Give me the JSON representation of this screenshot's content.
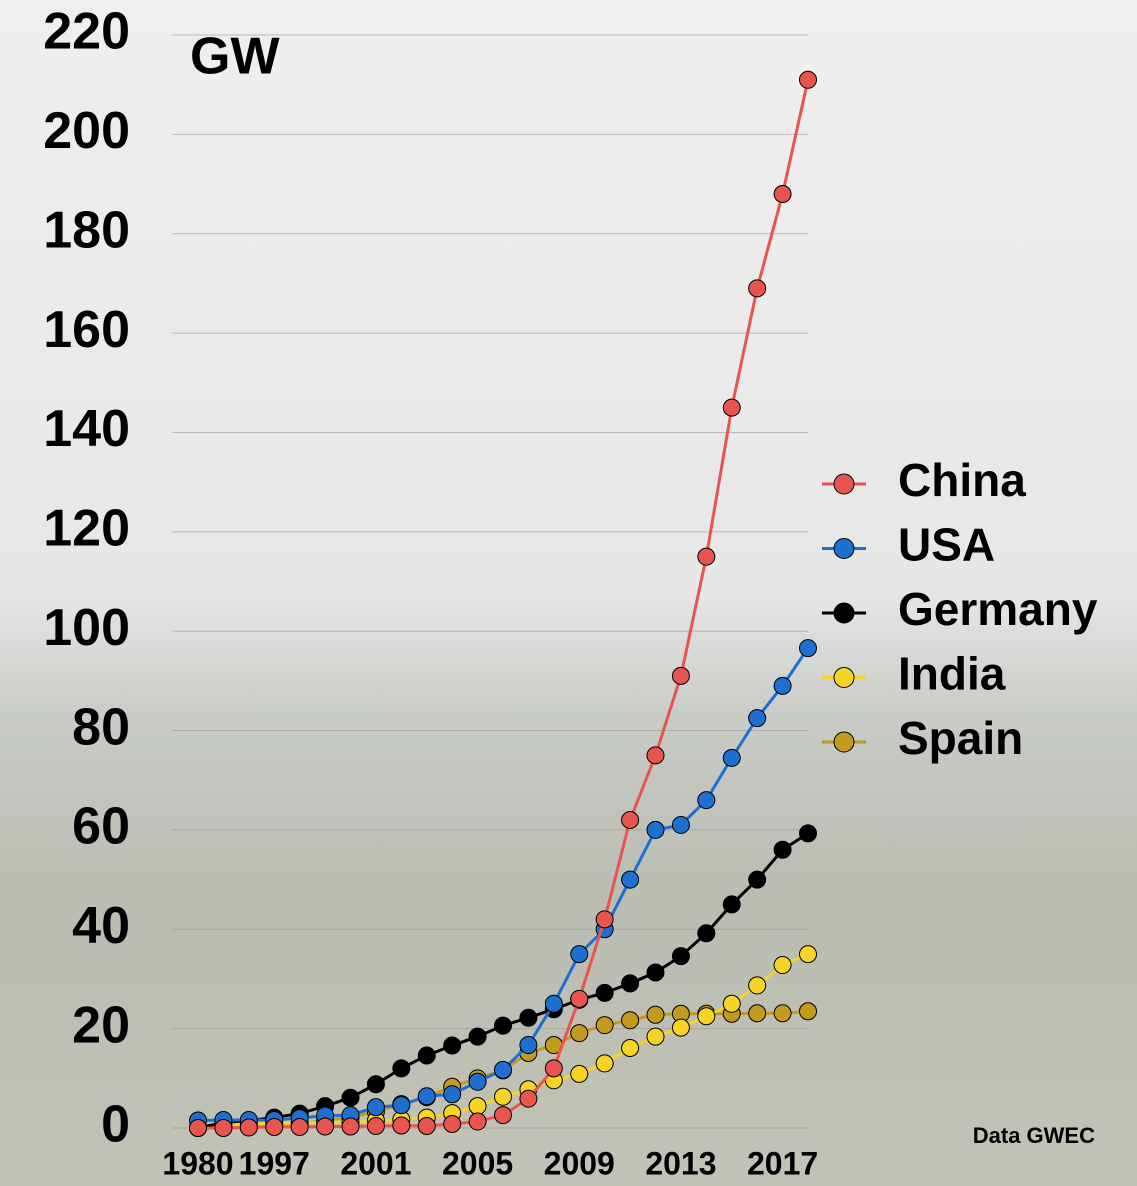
{
  "chart_data": {
    "type": "line",
    "y_label": "GW",
    "source": "Data  GWEC",
    "categories": [
      "1980",
      null,
      null,
      "1997",
      null,
      null,
      null,
      "2001",
      null,
      null,
      null,
      "2005",
      null,
      null,
      null,
      "2009",
      null,
      null,
      null,
      "2013",
      null,
      null,
      null,
      "2017",
      null
    ],
    "series": [
      {
        "name": "China",
        "color": "#e8554e",
        "values": [
          0,
          0,
          0.1,
          0.2,
          0.2,
          0.3,
          0.3,
          0.4,
          0.5,
          0.4,
          0.8,
          1.3,
          2.6,
          5.9,
          12,
          26,
          42,
          62,
          75,
          91,
          115,
          145,
          169,
          188,
          211
        ]
      },
      {
        "name": "USA",
        "color": "#1f6fd1",
        "values": [
          1.5,
          1.6,
          1.6,
          1.6,
          2,
          2.5,
          2.6,
          4.2,
          4.6,
          6.4,
          6.8,
          9.3,
          11.7,
          16.7,
          25,
          35,
          40,
          50,
          60,
          61,
          66,
          74.5,
          82.5,
          89,
          96.6
        ]
      },
      {
        "name": "Germany",
        "color": "#000000",
        "values": [
          0,
          1.1,
          1.5,
          2.1,
          2.9,
          4.4,
          6.1,
          8.8,
          12,
          14.6,
          16.6,
          18.4,
          20.6,
          22.2,
          23.9,
          25.8,
          27.2,
          29.1,
          31.3,
          34.6,
          39.2,
          45,
          50,
          56,
          59.3
        ]
      },
      {
        "name": "India",
        "color": "#f5d327",
        "values": [
          0,
          0.6,
          0.8,
          0.9,
          1,
          1.1,
          1.2,
          1.5,
          1.7,
          2.1,
          3,
          4.4,
          6.3,
          7.8,
          9.6,
          10.9,
          13,
          16.1,
          18.4,
          20.2,
          22.5,
          25,
          28.7,
          32.8,
          35
        ]
      },
      {
        "name": "Spain",
        "color": "#c29a1e",
        "values": [
          0,
          0.1,
          0.2,
          0.4,
          0.8,
          1.5,
          2.2,
          3.3,
          4.8,
          6.2,
          8.3,
          10,
          11.6,
          15.1,
          16.7,
          19.1,
          20.7,
          21.7,
          22.8,
          23,
          23,
          23,
          23.1,
          23.1,
          23.5
        ]
      }
    ],
    "ylim": [
      0,
      220
    ],
    "yticks": [
      0,
      20,
      40,
      60,
      80,
      100,
      120,
      140,
      160,
      180,
      200,
      220
    ],
    "grid": true
  }
}
